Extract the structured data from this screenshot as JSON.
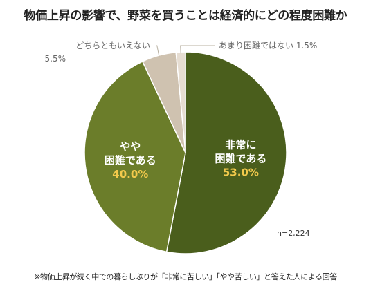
{
  "chart_data": {
    "type": "pie",
    "title": "物価上昇の影響で、野菜を買うことは経済的にどの程度困難か",
    "series": [
      {
        "name": "非常に困難である",
        "label_lines": [
          "非常に",
          "困難である"
        ],
        "value": 53.0,
        "value_label": "53.0%",
        "color": "#4a5e1c",
        "label_position": "inside"
      },
      {
        "name": "やや困難である",
        "label_lines": [
          "やや",
          "困難である"
        ],
        "value": 40.0,
        "value_label": "40.0%",
        "color": "#6b7d2a",
        "label_position": "inside"
      },
      {
        "name": "どちらともいえない",
        "label_lines": [
          "どちらともいえない",
          "5.5%"
        ],
        "value": 5.5,
        "value_label": "5.5%",
        "color": "#cfc2b0",
        "label_position": "outside-left"
      },
      {
        "name": "あまり困難ではない",
        "label_lines": [
          "あまり困難ではない 1.5%"
        ],
        "value": 1.5,
        "value_label": "1.5%",
        "color": "#e6ddd2",
        "label_position": "outside-right"
      }
    ],
    "sample_size": "n=2,224",
    "inside_label_color": "#ffffff",
    "inside_value_color": "#f2c94c",
    "leader_line_color": "#b8b0a2"
  },
  "footnote": "※物価上昇が続く中での暮らしぶりが「非常に苦しい」「やや苦しい」と答えた人による回答"
}
